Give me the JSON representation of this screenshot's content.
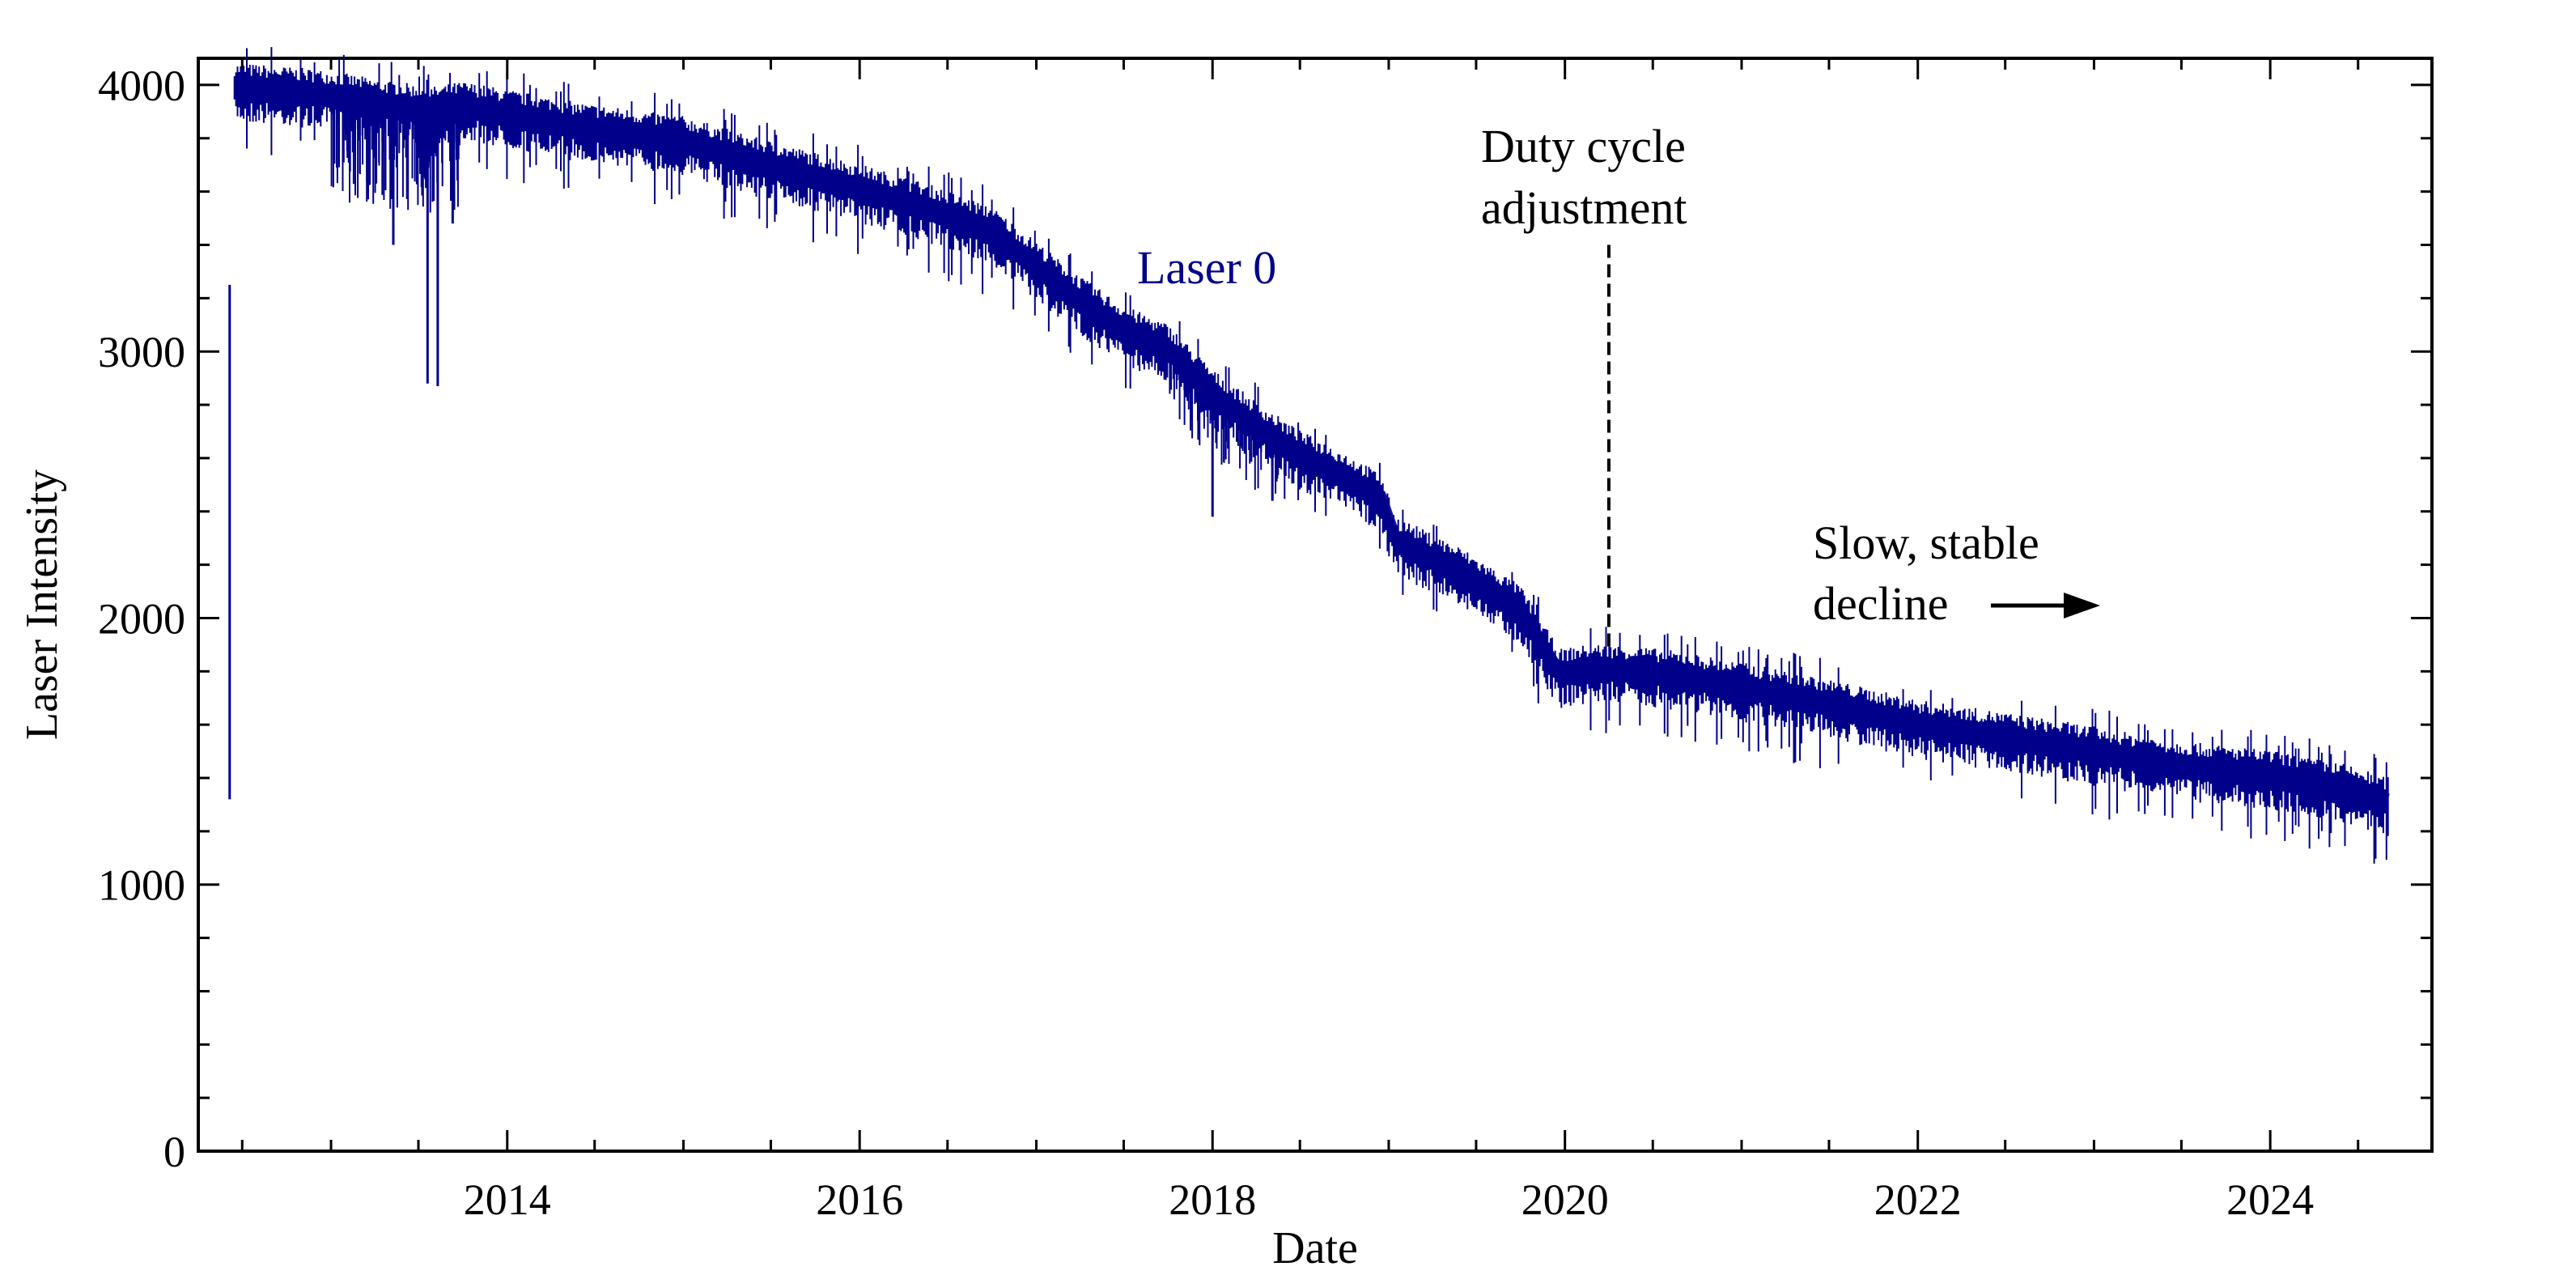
{
  "chart_data": {
    "type": "line",
    "xlabel": "Date",
    "ylabel": "Laser Intensity",
    "xlim": [
      "2012-04-01",
      "2024-12-01"
    ],
    "ylim": [
      0,
      4100
    ],
    "x_ticks": [
      "2014",
      "2016",
      "2018",
      "2020",
      "2022",
      "2024"
    ],
    "y_ticks": [
      "0",
      "1000",
      "2000",
      "3000",
      "4000"
    ],
    "grid": false,
    "series_color": "#00008B",
    "series": [
      {
        "name": "Laser 0",
        "x": [
          "2012-06-15",
          "2012-09-01",
          "2013-01-01",
          "2013-04-01",
          "2013-08-01",
          "2013-10-01",
          "2014-01-01",
          "2014-06-01",
          "2015-01-01",
          "2015-06-01",
          "2016-01-01",
          "2016-06-01",
          "2016-10-01",
          "2017-01-01",
          "2017-04-01",
          "2017-07-01",
          "2017-10-01",
          "2018-01-01",
          "2018-04-01",
          "2018-07-01",
          "2018-10-01",
          "2018-12-15",
          "2019-01-15",
          "2019-06-01",
          "2019-10-01",
          "2019-12-20",
          "2020-03-01",
          "2020-06-01",
          "2020-09-01",
          "2021-01-01",
          "2021-06-01",
          "2022-01-01",
          "2022-06-01",
          "2022-12-01",
          "2023-06-01",
          "2024-01-01",
          "2024-06-01",
          "2024-09-01"
        ],
        "y": [
          4000,
          3990,
          3970,
          3940,
          3910,
          3930,
          3900,
          3850,
          3800,
          3720,
          3620,
          3540,
          3460,
          3330,
          3200,
          3090,
          3020,
          2850,
          2730,
          2620,
          2540,
          2460,
          2300,
          2180,
          2040,
          1800,
          1820,
          1810,
          1790,
          1750,
          1700,
          1610,
          1570,
          1520,
          1460,
          1420,
          1370,
          1320
        ]
      }
    ],
    "dips": [
      {
        "x": "2012-06-05",
        "y": 3250
      },
      {
        "x": "2013-05-10",
        "y": 3400
      },
      {
        "x": "2013-07-20",
        "y": 2880
      },
      {
        "x": "2013-08-10",
        "y": 2870
      },
      {
        "x": "2013-09-10",
        "y": 3480
      },
      {
        "x": "2018-01-01",
        "y": 2380
      },
      {
        "x": "2018-05-05",
        "y": 2440
      }
    ],
    "annotations": [
      {
        "lines": [
          "Duty cycle",
          "adjustment"
        ],
        "x": "2020-04-01",
        "y_from": 1870,
        "y_to": 3400,
        "style": "dashed-vertical-line"
      },
      {
        "lines": [
          "Slow, stable",
          "decline"
        ],
        "arrow": "right"
      }
    ]
  }
}
